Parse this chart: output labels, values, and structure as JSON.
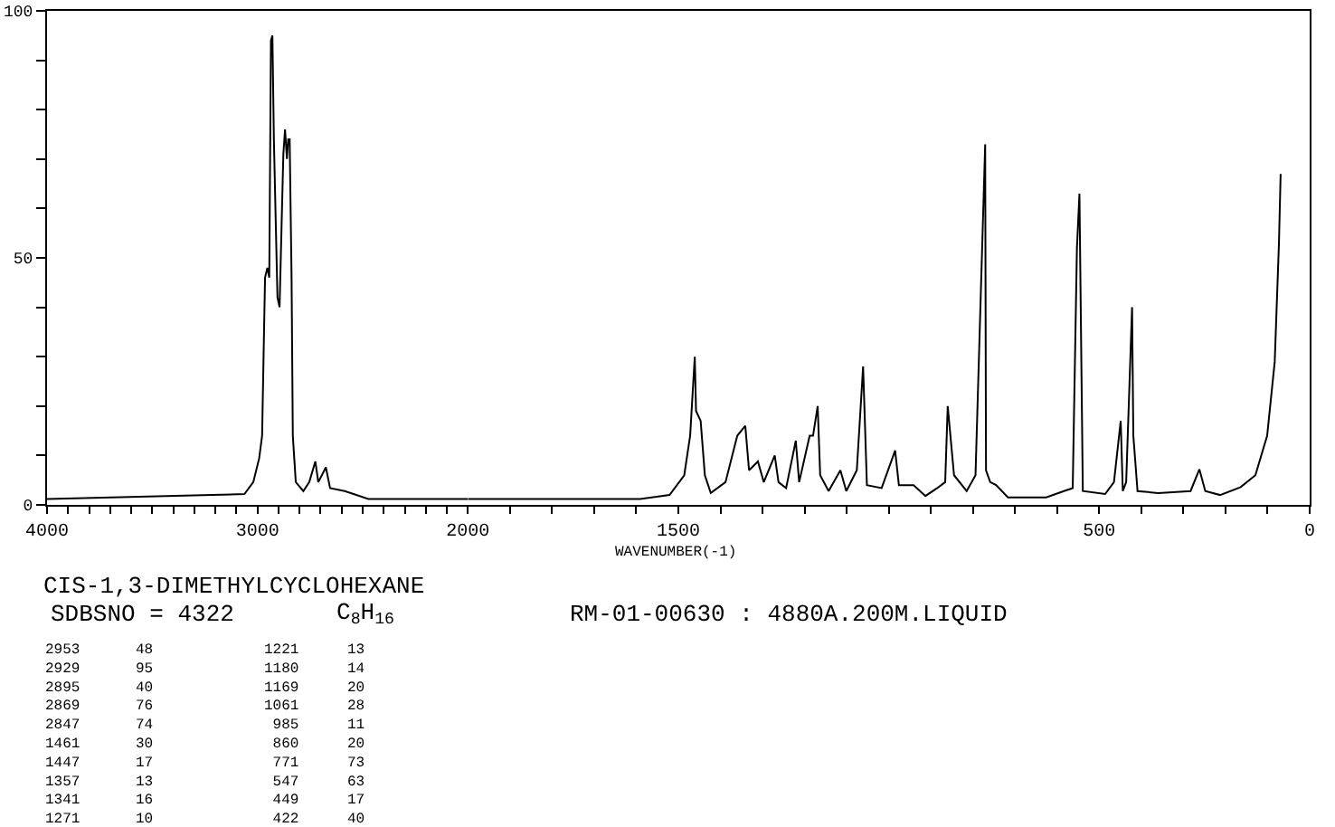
{
  "chart_data": [
    {
      "type": "line",
      "title": "CIS-1,3-DIMETHYLCYCLOHEXANE",
      "annotations": [
        "SDBSNO = 4322",
        "C$_{8}$H$_{16}$",
        "RM-01-00630 : 4880A.200M.LIQUID",
        "2953\n2929\n2895\n2869\n2847\n1461\n1447\n1357\n1341\n1271",
        "48\n95\n40\n76\n74\n30\n17\n13\n16\n10",
        "1221\n1180\n1169\n1061\n985\n860\n771\n547\n449\n422",
        "13\n14\n20\n28\n11\n20\n73\n63\n17\n40"
      ],
      "x": [
        4000,
        3216,
        3062,
        3020,
        2992,
        2978,
        2964,
        2953,
        2944,
        2936,
        2929,
        2922,
        2913,
        2905,
        2895,
        2877,
        2869,
        2860,
        2854,
        2847,
        2838,
        2832,
        2818,
        2782,
        2754,
        2725,
        2711,
        2675,
        2655,
        2585,
        2473,
        2000
      ],
      "values": [
        1.2,
        2,
        2.2,
        4.6,
        9.4,
        14,
        46,
        48,
        46,
        94,
        95,
        74,
        57,
        42,
        40,
        71,
        76,
        70,
        74,
        74,
        46,
        14,
        4.6,
        2.8,
        4.6,
        8.8,
        4.6,
        7.6,
        3.4,
        2.8,
        1.2,
        1.2
      ],
      "color": "#000000",
      "line_style": "solid",
      "xlim": [
        4000,
        2000
      ],
      "xticks": [
        4000,
        {
          "value": 3900,
          "label": null
        },
        {
          "value": 3800,
          "label": null
        },
        {
          "value": 3700,
          "label": null
        },
        {
          "value": 3600,
          "label": null
        },
        {
          "value": 3500,
          "label": null
        },
        {
          "value": 3400,
          "label": null
        },
        {
          "value": 3300,
          "label": null
        },
        {
          "value": 3200,
          "label": null
        },
        {
          "value": 3100,
          "label": null
        },
        3000,
        {
          "value": 2900,
          "label": null
        },
        {
          "value": 2800,
          "label": null
        },
        {
          "value": 2700,
          "label": null
        },
        {
          "value": 2600,
          "label": null
        },
        {
          "value": 2500,
          "label": null
        },
        {
          "value": 2400,
          "label": null
        },
        {
          "value": 2300,
          "label": null
        },
        {
          "value": 2200,
          "label": null
        },
        {
          "value": 2100,
          "label": null
        },
        2000
      ],
      "ylim": [
        0,
        100
      ],
      "yticks": [
        0,
        {
          "value": 10,
          "label": null
        },
        {
          "value": 20,
          "label": null
        },
        {
          "value": 30,
          "label": null
        },
        {
          "value": 40,
          "label": null
        },
        50,
        {
          "value": 60,
          "label": null
        },
        {
          "value": 70,
          "label": null
        },
        {
          "value": 80,
          "label": null
        },
        {
          "value": 90,
          "label": null
        },
        100
      ]
    },
    {
      "type": "line",
      "xlabel": "WAVENUMBER(-1)",
      "x": [
        2000,
        1591,
        1521,
        1486,
        1472,
        1461,
        1458,
        1447,
        1437,
        1423,
        1388,
        1360,
        1341,
        1332,
        1311,
        1297,
        1271,
        1262,
        1244,
        1221,
        1213,
        1188,
        1180,
        1169,
        1163,
        1143,
        1115,
        1101,
        1076,
        1061,
        1052,
        1017,
        985,
        976,
        941,
        913,
        885,
        866,
        860,
        845,
        815,
        794,
        771,
        769,
        759,
        745,
        717,
        626,
        584,
        563,
        553,
        547,
        539,
        486,
        465,
        449,
        444,
        436,
        422,
        419,
        409,
        360,
        283,
        262,
        248,
        213,
        164,
        129,
        101,
        83,
        73,
        69
      ],
      "values": [
        1.2,
        1.2,
        2,
        6,
        14,
        30,
        19,
        17,
        6,
        2.4,
        4.6,
        14,
        16,
        7,
        8.8,
        4.6,
        10,
        4.6,
        3.4,
        13,
        4.6,
        14,
        14,
        20,
        6,
        2.8,
        7,
        2.8,
        7,
        28,
        4,
        3.4,
        11,
        4,
        4,
        1.8,
        3.4,
        4.6,
        20,
        6,
        2.8,
        6,
        73,
        7,
        4.6,
        4,
        1.5,
        1.5,
        2.8,
        3.4,
        52,
        63,
        2.8,
        2.2,
        4.6,
        17,
        2.8,
        4.6,
        40,
        14,
        2.8,
        2.4,
        2.8,
        7.2,
        2.8,
        2,
        3.6,
        6,
        14,
        29,
        53,
        67
      ],
      "color": "#000000",
      "line_style": "solid",
      "xlim": [
        2000,
        0
      ],
      "xticks": [
        {
          "value": 1900,
          "label": null
        },
        {
          "value": 1800,
          "label": null
        },
        {
          "value": 1700,
          "label": null
        },
        {
          "value": 1600,
          "label": null
        },
        1500,
        {
          "value": 1400,
          "label": null
        },
        {
          "value": 1300,
          "label": null
        },
        {
          "value": 1200,
          "label": null
        },
        {
          "value": 1100,
          "label": null
        },
        {
          "value": 1000,
          "label": null
        },
        {
          "value": 900,
          "label": null
        },
        {
          "value": 800,
          "label": null
        },
        {
          "value": 700,
          "label": null
        },
        {
          "value": 600,
          "label": null
        },
        500,
        {
          "value": 400,
          "label": null
        },
        {
          "value": 300,
          "label": null
        },
        {
          "value": 200,
          "label": null
        },
        {
          "value": 100,
          "label": null
        },
        0
      ],
      "ylim": [
        0,
        100
      ],
      "tick_labels": "x"
    }
  ]
}
